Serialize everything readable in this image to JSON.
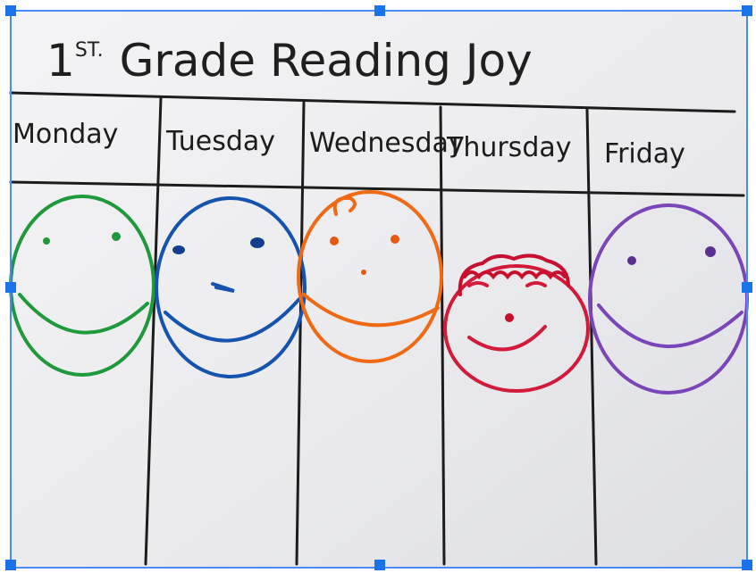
{
  "title": {
    "ordinal": "1",
    "suffix": "ST.",
    "text": "Grade Reading Joy"
  },
  "days": [
    "Monday",
    "Tuesday",
    "Wednesday",
    "Thursday",
    "Friday"
  ]
}
